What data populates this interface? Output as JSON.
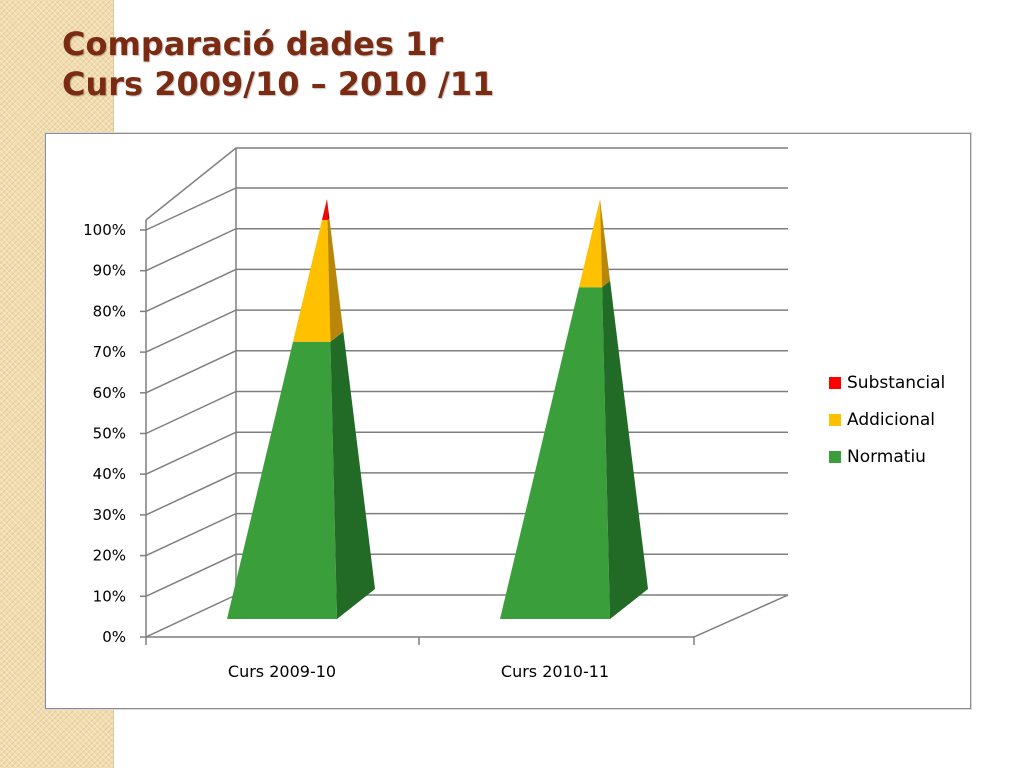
{
  "slide": {
    "title_line1": "Comparació dades 1r",
    "title_line2": "Curs 2009/10 – 2010 /11"
  },
  "chart_data": {
    "type": "bar",
    "subtype": "3d-stacked-100-pyramid",
    "categories": [
      "Curs 2009-10",
      "Curs 2010-11"
    ],
    "series": [
      {
        "name": "Normatiu",
        "values": [
          66,
          79
        ],
        "color": "#3a9f3a"
      },
      {
        "name": "Addicional",
        "values": [
          29,
          21
        ],
        "color": "#ffc000"
      },
      {
        "name": "Substancial",
        "values": [
          5,
          0
        ],
        "color": "#ff0000"
      }
    ],
    "y_ticks": [
      "0%",
      "10%",
      "20%",
      "30%",
      "40%",
      "50%",
      "60%",
      "70%",
      "80%",
      "90%",
      "100%"
    ],
    "ylim": [
      0,
      100
    ],
    "grid": true,
    "legend_position": "right",
    "legend_order": [
      "Substancial",
      "Addicional",
      "Normatiu"
    ]
  }
}
